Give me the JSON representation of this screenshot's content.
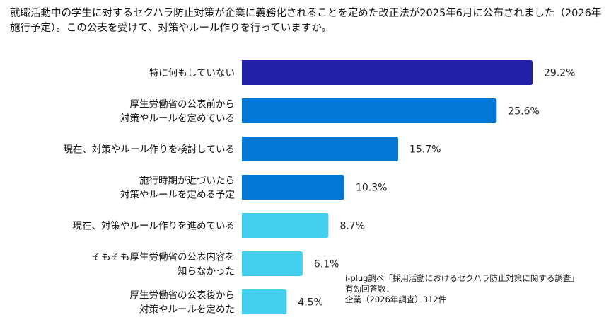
{
  "chart_data": {
    "type": "bar",
    "orientation": "horizontal",
    "title": "就職活動中の学生に対するセクハラ防止対策が企業に義務化されることを定めた改正法が2025年6月に公布されました（2026年施行予定）。この公表を受けて、対策やルール作りを行っていますか。",
    "categories": [
      [
        "特に何もしていない"
      ],
      [
        "厚生労働省の公表前から",
        "対策やルールを定めている"
      ],
      [
        "現在、対策やルール作りを検討している"
      ],
      [
        "施行時期が近づいたら",
        "対策やルールを定める予定"
      ],
      [
        "現在、対策やルール作りを進めている"
      ],
      [
        "そもそも厚生労働省の公表内容を",
        "知らなかった"
      ],
      [
        "厚生労働省の公表後から",
        "対策やルールを定めた"
      ]
    ],
    "values": [
      29.2,
      25.6,
      15.7,
      10.3,
      8.7,
      6.1,
      4.5
    ],
    "data_labels": [
      "29.2%",
      "25.6%",
      "15.7%",
      "10.3%",
      "8.7%",
      "6.1%",
      "4.5%"
    ],
    "bar_colors": [
      "#2020a8",
      "#0377d4",
      "#0377d4",
      "#0377d4",
      "#43d0ee",
      "#43d0ee",
      "#43d0ee"
    ],
    "xlim": [
      0,
      29.2
    ],
    "grid": false,
    "legend": "none"
  },
  "source_note": [
    "i-plug調べ「採用活動におけるセクハラ防止対策に関する調査」",
    "有効回答数：",
    "企業（2026年調査）312件"
  ]
}
